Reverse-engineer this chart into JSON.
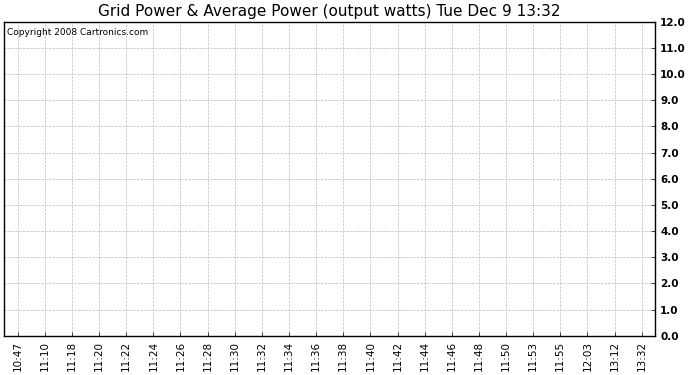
{
  "title": "Grid Power & Average Power (output watts) Tue Dec 9 13:32",
  "copyright_text": "Copyright 2008 Cartronics.com",
  "x_labels": [
    "10:47",
    "11:10",
    "11:18",
    "11:20",
    "11:22",
    "11:24",
    "11:26",
    "11:28",
    "11:30",
    "11:32",
    "11:34",
    "11:36",
    "11:38",
    "11:40",
    "11:42",
    "11:44",
    "11:46",
    "11:48",
    "11:50",
    "11:53",
    "11:55",
    "12:03",
    "13:12",
    "13:32"
  ],
  "y_min": 0.0,
  "y_max": 12.0,
  "y_ticks": [
    0.0,
    1.0,
    2.0,
    3.0,
    4.0,
    5.0,
    6.0,
    7.0,
    8.0,
    9.0,
    10.0,
    11.0,
    12.0
  ],
  "bg_color": "#ffffff",
  "plot_bg_color": "#ffffff",
  "grid_color": "#bbbbbb",
  "title_fontsize": 11,
  "copyright_fontsize": 6.5,
  "tick_fontsize": 7.5,
  "border_color": "#000000"
}
